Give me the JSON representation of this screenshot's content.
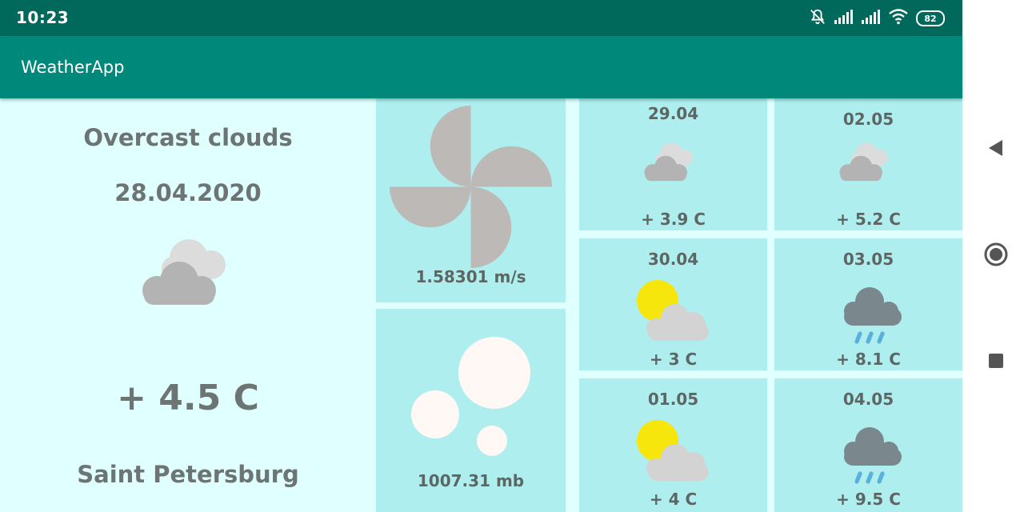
{
  "status_bar": {
    "time": "10:23",
    "battery": "82"
  },
  "app_bar": {
    "title": "WeatherApp"
  },
  "current": {
    "description": "Overcast clouds",
    "date": "28.04.2020",
    "icon": "overcast-cloud-icon",
    "temperature": "+ 4.5 C",
    "city": "Saint Petersburg"
  },
  "wind": {
    "icon": "pinwheel-icon",
    "speed": "1.58301 m/s"
  },
  "pressure": {
    "icon": "bubbles-icon",
    "value": "1007.31 mb"
  },
  "forecast": [
    {
      "date": "29.04",
      "icon": "overcast-cloud-icon",
      "temp": "+ 3.9 C"
    },
    {
      "date": "02.05",
      "icon": "overcast-cloud-icon",
      "temp": "+ 5.2 C"
    },
    {
      "date": "30.04",
      "icon": "sun-cloud-icon",
      "temp": "+ 3 C"
    },
    {
      "date": "03.05",
      "icon": "rain-cloud-icon",
      "temp": "+ 8.1 C"
    },
    {
      "date": "01.05",
      "icon": "sun-cloud-icon",
      "temp": "+ 4 C"
    },
    {
      "date": "04.05",
      "icon": "rain-cloud-icon",
      "temp": "+ 9.5 C"
    }
  ],
  "colors": {
    "status_bar": "#00695c",
    "app_bar": "#00897b",
    "background": "#e0ffff",
    "tile": "#afeeee",
    "text": "#6d7574"
  }
}
